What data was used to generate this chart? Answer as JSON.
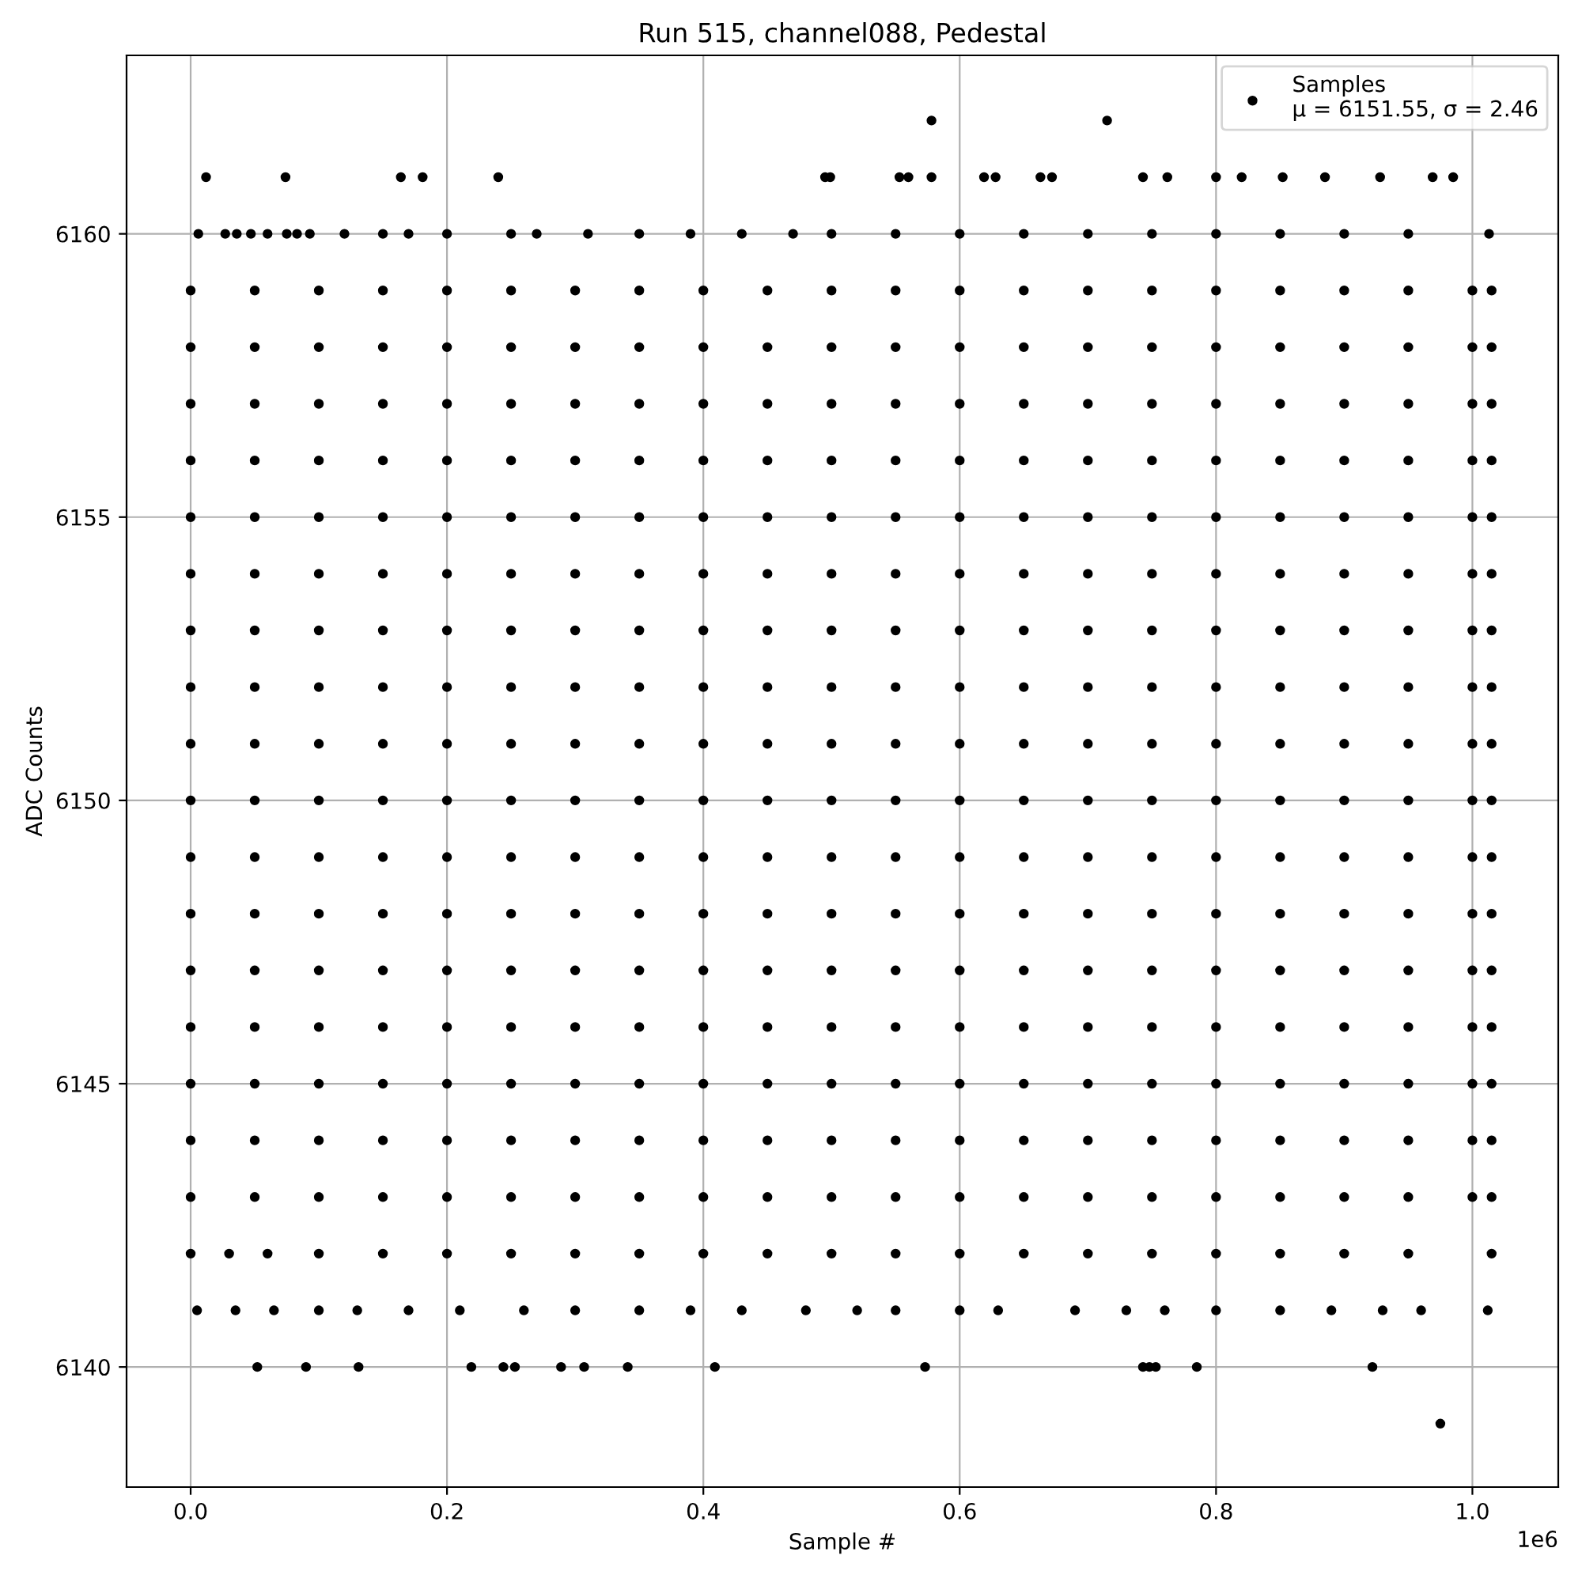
{
  "chart_data": {
    "type": "scatter",
    "title": "Run 515, channel088, Pedestal",
    "xlabel": "Sample #",
    "ylabel": "ADC Counts",
    "annotations": [
      "1e6"
    ],
    "xlim": [
      -0.05,
      1.067
    ],
    "ylim": [
      6137.88,
      6163.15
    ],
    "xticks": [
      {
        "value": 0,
        "label": "0.0"
      },
      0.2,
      0.4,
      0.6,
      0.8,
      {
        "value": 1,
        "label": "1.0"
      }
    ],
    "yticks": [
      6140,
      6145,
      6150,
      6155,
      6160
    ],
    "grid": true,
    "legend": "top right",
    "marker": "circle",
    "series": [
      {
        "name": "Samples\nμ = 6151.55, σ = 2.46",
        "color": "#000000",
        "x": [
          0.578,
          0.715
        ],
        "values": [
          6162,
          6162
        ]
      },
      {
        "color": "#000000",
        "x": [
          0.012,
          0.074,
          0.164,
          0.181,
          0.24,
          0.495,
          0.499,
          0.553,
          0.56,
          0.578,
          0.619,
          0.628,
          0.663,
          0.672,
          0.743,
          0.762,
          0.8,
          0.82,
          0.852,
          0.885,
          0.928,
          0.969,
          0.985
        ],
        "values": [
          6161,
          6161,
          6161,
          6161,
          6161,
          6161,
          6161,
          6161,
          6161,
          6161,
          6161,
          6161,
          6161,
          6161,
          6161,
          6161,
          6161,
          6161,
          6161,
          6161,
          6161,
          6161,
          6161
        ]
      },
      {
        "color": "#000000",
        "x": [
          0.006,
          0.027,
          0.036,
          0.047,
          0.06,
          0.075,
          0.083,
          0.093,
          0.12,
          0.15,
          0.17,
          0.2,
          0.25,
          0.27,
          0.31,
          0.35,
          0.39,
          0.43,
          0.47,
          0.5,
          0.55,
          0.6,
          0.65,
          0.7,
          0.75,
          0.8,
          0.85,
          0.9,
          0.95,
          1.013
        ],
        "values": [
          6160,
          6160,
          6160,
          6160,
          6160,
          6160,
          6160,
          6160,
          6160,
          6160,
          6160,
          6160,
          6160,
          6160,
          6160,
          6160,
          6160,
          6160,
          6160,
          6160,
          6160,
          6160,
          6160,
          6160,
          6160,
          6160,
          6160,
          6160,
          6160,
          6160
        ]
      },
      {
        "color": "#000000",
        "x": [
          0,
          0.05,
          0.1,
          0.15,
          0.2,
          0.25,
          0.3,
          0.35,
          0.4,
          0.45,
          0.5,
          0.55,
          0.6,
          0.65,
          0.7,
          0.75,
          0.8,
          0.85,
          0.9,
          0.95,
          1.0,
          1.015
        ],
        "values": [
          6159,
          6159,
          6159,
          6159,
          6159,
          6159,
          6159,
          6159,
          6159,
          6159,
          6159,
          6159,
          6159,
          6159,
          6159,
          6159,
          6159,
          6159,
          6159,
          6159,
          6159,
          6159
        ]
      },
      {
        "color": "#000000",
        "x": [
          0,
          0.05,
          0.1,
          0.15,
          0.2,
          0.25,
          0.3,
          0.35,
          0.4,
          0.45,
          0.5,
          0.55,
          0.6,
          0.65,
          0.7,
          0.75,
          0.8,
          0.85,
          0.9,
          0.95,
          1.0,
          1.015
        ],
        "values": [
          6158,
          6158,
          6158,
          6158,
          6158,
          6158,
          6158,
          6158,
          6158,
          6158,
          6158,
          6158,
          6158,
          6158,
          6158,
          6158,
          6158,
          6158,
          6158,
          6158,
          6158,
          6158
        ]
      },
      {
        "color": "#000000",
        "x": [
          0,
          0.05,
          0.1,
          0.15,
          0.2,
          0.25,
          0.3,
          0.35,
          0.4,
          0.45,
          0.5,
          0.55,
          0.6,
          0.65,
          0.7,
          0.75,
          0.8,
          0.85,
          0.9,
          0.95,
          1.0,
          1.015
        ],
        "values": [
          6157,
          6157,
          6157,
          6157,
          6157,
          6157,
          6157,
          6157,
          6157,
          6157,
          6157,
          6157,
          6157,
          6157,
          6157,
          6157,
          6157,
          6157,
          6157,
          6157,
          6157,
          6157
        ]
      },
      {
        "color": "#000000",
        "x": [
          0,
          0.05,
          0.1,
          0.15,
          0.2,
          0.25,
          0.3,
          0.35,
          0.4,
          0.45,
          0.5,
          0.55,
          0.6,
          0.65,
          0.7,
          0.75,
          0.8,
          0.85,
          0.9,
          0.95,
          1.0,
          1.015
        ],
        "values": [
          6156,
          6156,
          6156,
          6156,
          6156,
          6156,
          6156,
          6156,
          6156,
          6156,
          6156,
          6156,
          6156,
          6156,
          6156,
          6156,
          6156,
          6156,
          6156,
          6156,
          6156,
          6156
        ]
      },
      {
        "color": "#000000",
        "x": [
          0,
          0.05,
          0.1,
          0.15,
          0.2,
          0.25,
          0.3,
          0.35,
          0.4,
          0.45,
          0.5,
          0.55,
          0.6,
          0.65,
          0.7,
          0.75,
          0.8,
          0.85,
          0.9,
          0.95,
          1.0,
          1.015
        ],
        "values": [
          6155,
          6155,
          6155,
          6155,
          6155,
          6155,
          6155,
          6155,
          6155,
          6155,
          6155,
          6155,
          6155,
          6155,
          6155,
          6155,
          6155,
          6155,
          6155,
          6155,
          6155,
          6155
        ]
      },
      {
        "color": "#000000",
        "x": [
          0,
          0.05,
          0.1,
          0.15,
          0.2,
          0.25,
          0.3,
          0.35,
          0.4,
          0.45,
          0.5,
          0.55,
          0.6,
          0.65,
          0.7,
          0.75,
          0.8,
          0.85,
          0.9,
          0.95,
          1.0,
          1.015
        ],
        "values": [
          6154,
          6154,
          6154,
          6154,
          6154,
          6154,
          6154,
          6154,
          6154,
          6154,
          6154,
          6154,
          6154,
          6154,
          6154,
          6154,
          6154,
          6154,
          6154,
          6154,
          6154,
          6154
        ]
      },
      {
        "color": "#000000",
        "x": [
          0,
          0.05,
          0.1,
          0.15,
          0.2,
          0.25,
          0.3,
          0.35,
          0.4,
          0.45,
          0.5,
          0.55,
          0.6,
          0.65,
          0.7,
          0.75,
          0.8,
          0.85,
          0.9,
          0.95,
          1.0,
          1.015
        ],
        "values": [
          6153,
          6153,
          6153,
          6153,
          6153,
          6153,
          6153,
          6153,
          6153,
          6153,
          6153,
          6153,
          6153,
          6153,
          6153,
          6153,
          6153,
          6153,
          6153,
          6153,
          6153,
          6153
        ]
      },
      {
        "color": "#000000",
        "x": [
          0,
          0.05,
          0.1,
          0.15,
          0.2,
          0.25,
          0.3,
          0.35,
          0.4,
          0.45,
          0.5,
          0.55,
          0.6,
          0.65,
          0.7,
          0.75,
          0.8,
          0.85,
          0.9,
          0.95,
          1.0,
          1.015
        ],
        "values": [
          6152,
          6152,
          6152,
          6152,
          6152,
          6152,
          6152,
          6152,
          6152,
          6152,
          6152,
          6152,
          6152,
          6152,
          6152,
          6152,
          6152,
          6152,
          6152,
          6152,
          6152,
          6152
        ]
      },
      {
        "color": "#000000",
        "x": [
          0,
          0.05,
          0.1,
          0.15,
          0.2,
          0.25,
          0.3,
          0.35,
          0.4,
          0.45,
          0.5,
          0.55,
          0.6,
          0.65,
          0.7,
          0.75,
          0.8,
          0.85,
          0.9,
          0.95,
          1.0,
          1.015
        ],
        "values": [
          6151,
          6151,
          6151,
          6151,
          6151,
          6151,
          6151,
          6151,
          6151,
          6151,
          6151,
          6151,
          6151,
          6151,
          6151,
          6151,
          6151,
          6151,
          6151,
          6151,
          6151,
          6151
        ]
      },
      {
        "color": "#000000",
        "x": [
          0,
          0.05,
          0.1,
          0.15,
          0.2,
          0.25,
          0.3,
          0.35,
          0.4,
          0.45,
          0.5,
          0.55,
          0.6,
          0.65,
          0.7,
          0.75,
          0.8,
          0.85,
          0.9,
          0.95,
          1.0,
          1.015
        ],
        "values": [
          6150,
          6150,
          6150,
          6150,
          6150,
          6150,
          6150,
          6150,
          6150,
          6150,
          6150,
          6150,
          6150,
          6150,
          6150,
          6150,
          6150,
          6150,
          6150,
          6150,
          6150,
          6150
        ]
      },
      {
        "color": "#000000",
        "x": [
          0,
          0.05,
          0.1,
          0.15,
          0.2,
          0.25,
          0.3,
          0.35,
          0.4,
          0.45,
          0.5,
          0.55,
          0.6,
          0.65,
          0.7,
          0.75,
          0.8,
          0.85,
          0.9,
          0.95,
          1.0,
          1.015
        ],
        "values": [
          6149,
          6149,
          6149,
          6149,
          6149,
          6149,
          6149,
          6149,
          6149,
          6149,
          6149,
          6149,
          6149,
          6149,
          6149,
          6149,
          6149,
          6149,
          6149,
          6149,
          6149,
          6149
        ]
      },
      {
        "color": "#000000",
        "x": [
          0,
          0.05,
          0.1,
          0.15,
          0.2,
          0.25,
          0.3,
          0.35,
          0.4,
          0.45,
          0.5,
          0.55,
          0.6,
          0.65,
          0.7,
          0.75,
          0.8,
          0.85,
          0.9,
          0.95,
          1.0,
          1.015
        ],
        "values": [
          6148,
          6148,
          6148,
          6148,
          6148,
          6148,
          6148,
          6148,
          6148,
          6148,
          6148,
          6148,
          6148,
          6148,
          6148,
          6148,
          6148,
          6148,
          6148,
          6148,
          6148,
          6148
        ]
      },
      {
        "color": "#000000",
        "x": [
          0,
          0.05,
          0.1,
          0.15,
          0.2,
          0.25,
          0.3,
          0.35,
          0.4,
          0.45,
          0.5,
          0.55,
          0.6,
          0.65,
          0.7,
          0.75,
          0.8,
          0.85,
          0.9,
          0.95,
          1.0,
          1.015
        ],
        "values": [
          6147,
          6147,
          6147,
          6147,
          6147,
          6147,
          6147,
          6147,
          6147,
          6147,
          6147,
          6147,
          6147,
          6147,
          6147,
          6147,
          6147,
          6147,
          6147,
          6147,
          6147,
          6147
        ]
      },
      {
        "color": "#000000",
        "x": [
          0,
          0.05,
          0.1,
          0.15,
          0.2,
          0.25,
          0.3,
          0.35,
          0.4,
          0.45,
          0.5,
          0.55,
          0.6,
          0.65,
          0.7,
          0.75,
          0.8,
          0.85,
          0.9,
          0.95,
          1.0,
          1.015
        ],
        "values": [
          6146,
          6146,
          6146,
          6146,
          6146,
          6146,
          6146,
          6146,
          6146,
          6146,
          6146,
          6146,
          6146,
          6146,
          6146,
          6146,
          6146,
          6146,
          6146,
          6146,
          6146,
          6146
        ]
      },
      {
        "color": "#000000",
        "x": [
          0,
          0.05,
          0.1,
          0.15,
          0.2,
          0.25,
          0.3,
          0.35,
          0.4,
          0.45,
          0.5,
          0.55,
          0.6,
          0.65,
          0.7,
          0.75,
          0.8,
          0.85,
          0.9,
          0.95,
          1.0,
          1.015
        ],
        "values": [
          6145,
          6145,
          6145,
          6145,
          6145,
          6145,
          6145,
          6145,
          6145,
          6145,
          6145,
          6145,
          6145,
          6145,
          6145,
          6145,
          6145,
          6145,
          6145,
          6145,
          6145,
          6145
        ]
      },
      {
        "color": "#000000",
        "x": [
          0,
          0.05,
          0.1,
          0.15,
          0.2,
          0.25,
          0.3,
          0.35,
          0.4,
          0.45,
          0.5,
          0.55,
          0.6,
          0.65,
          0.7,
          0.75,
          0.8,
          0.85,
          0.9,
          0.95,
          1.0,
          1.015
        ],
        "values": [
          6144,
          6144,
          6144,
          6144,
          6144,
          6144,
          6144,
          6144,
          6144,
          6144,
          6144,
          6144,
          6144,
          6144,
          6144,
          6144,
          6144,
          6144,
          6144,
          6144,
          6144,
          6144
        ]
      },
      {
        "color": "#000000",
        "x": [
          0,
          0.05,
          0.1,
          0.15,
          0.2,
          0.25,
          0.3,
          0.35,
          0.4,
          0.45,
          0.5,
          0.55,
          0.6,
          0.65,
          0.7,
          0.75,
          0.8,
          0.85,
          0.9,
          0.95,
          1.0,
          1.015
        ],
        "values": [
          6143,
          6143,
          6143,
          6143,
          6143,
          6143,
          6143,
          6143,
          6143,
          6143,
          6143,
          6143,
          6143,
          6143,
          6143,
          6143,
          6143,
          6143,
          6143,
          6143,
          6143,
          6143
        ]
      },
      {
        "color": "#000000",
        "x": [
          0,
          0.03,
          0.06,
          0.1,
          0.15,
          0.2,
          0.25,
          0.3,
          0.35,
          0.4,
          0.45,
          0.5,
          0.55,
          0.6,
          0.65,
          0.7,
          0.75,
          0.8,
          0.85,
          0.9,
          0.95,
          1.015
        ],
        "values": [
          6142,
          6142,
          6142,
          6142,
          6142,
          6142,
          6142,
          6142,
          6142,
          6142,
          6142,
          6142,
          6142,
          6142,
          6142,
          6142,
          6142,
          6142,
          6142,
          6142,
          6142,
          6142
        ]
      },
      {
        "color": "#000000",
        "x": [
          0.005,
          0.035,
          0.065,
          0.1,
          0.13,
          0.17,
          0.21,
          0.26,
          0.3,
          0.35,
          0.39,
          0.43,
          0.48,
          0.52,
          0.55,
          0.6,
          0.63,
          0.69,
          0.73,
          0.76,
          0.8,
          0.85,
          0.89,
          0.93,
          0.96,
          1.012
        ],
        "values": [
          6141,
          6141,
          6141,
          6141,
          6141,
          6141,
          6141,
          6141,
          6141,
          6141,
          6141,
          6141,
          6141,
          6141,
          6141,
          6141,
          6141,
          6141,
          6141,
          6141,
          6141,
          6141,
          6141,
          6141,
          6141,
          6141
        ]
      },
      {
        "color": "#000000",
        "x": [
          0.052,
          0.09,
          0.131,
          0.219,
          0.244,
          0.253,
          0.289,
          0.307,
          0.341,
          0.409,
          0.573,
          0.743,
          0.748,
          0.753,
          0.785,
          0.922
        ],
        "values": [
          6140,
          6140,
          6140,
          6140,
          6140,
          6140,
          6140,
          6140,
          6140,
          6140,
          6140,
          6140,
          6140,
          6140,
          6140,
          6140
        ]
      },
      {
        "color": "#000000",
        "x": [
          0.975
        ],
        "values": [
          6139
        ]
      }
    ]
  }
}
